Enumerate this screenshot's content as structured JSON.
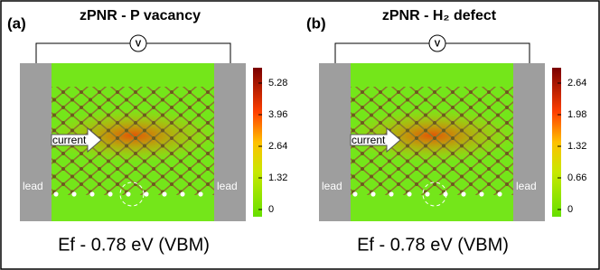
{
  "panels": [
    {
      "label": "(a)",
      "title": "zPNR - P vacancy",
      "voltage": "V",
      "current": "current",
      "lead_left": "lead",
      "lead_right": "lead",
      "colorbar_ticks": [
        0,
        1.32,
        2.64,
        3.96,
        5.28
      ],
      "caption": "Ef - 0.78 eV (VBM)"
    },
    {
      "label": "(b)",
      "title": "zPNR - H₂ defect",
      "voltage": "V",
      "current": "current",
      "lead_left": "lead",
      "lead_right": "lead",
      "colorbar_ticks": [
        0,
        0.66,
        1.32,
        1.98,
        2.64
      ],
      "caption": "Ef - 0.78 eV (VBM)"
    }
  ]
}
